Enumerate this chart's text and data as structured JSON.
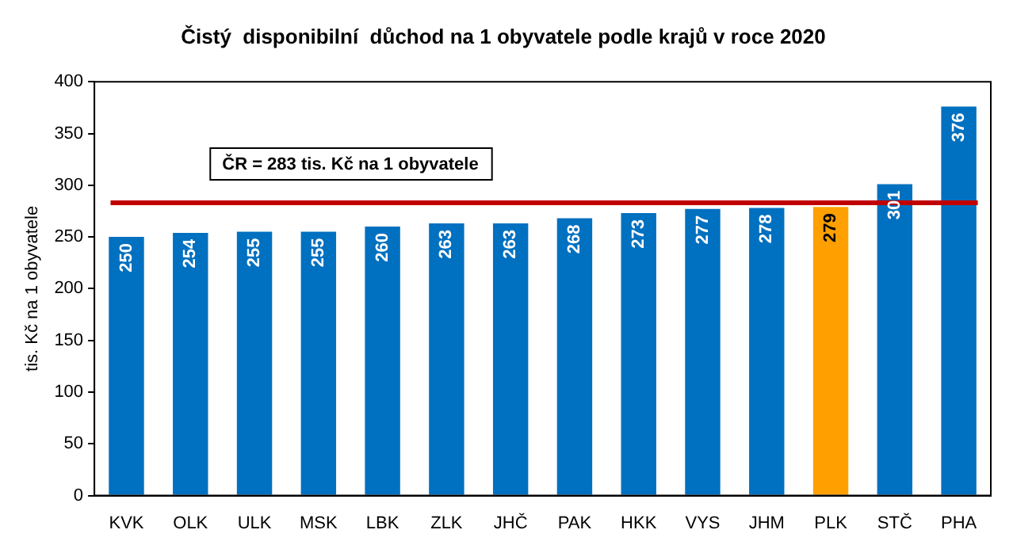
{
  "chart_data": {
    "type": "bar",
    "title": "Čistý  disponibilní  důchod na 1 obyvatele podle krajů v roce 2020",
    "ylabel": "tis. Kč na 1 obyvatele",
    "categories": [
      "KVK",
      "OLK",
      "ULK",
      "MSK",
      "LBK",
      "ZLK",
      "JHČ",
      "PAK",
      "HKK",
      "VYS",
      "JHM",
      "PLK",
      "STČ",
      "PHA"
    ],
    "values": [
      250,
      254,
      255,
      255,
      260,
      263,
      263,
      268,
      273,
      277,
      278,
      279,
      301,
      376
    ],
    "colors": [
      "#0070c0",
      "#0070c0",
      "#0070c0",
      "#0070c0",
      "#0070c0",
      "#0070c0",
      "#0070c0",
      "#0070c0",
      "#0070c0",
      "#0070c0",
      "#0070c0",
      "#ffa000",
      "#0070c0",
      "#0070c0"
    ],
    "ylim": [
      0,
      400
    ],
    "yticks": [
      0,
      50,
      100,
      150,
      200,
      250,
      300,
      350,
      400
    ],
    "grid": false,
    "legend": false,
    "data_labels": true,
    "ref_lines": [
      {
        "axis": "y",
        "value": 283,
        "label": "ČR = 283 tis. Kč na 1 obyvatele",
        "color": "#c00000"
      }
    ]
  }
}
